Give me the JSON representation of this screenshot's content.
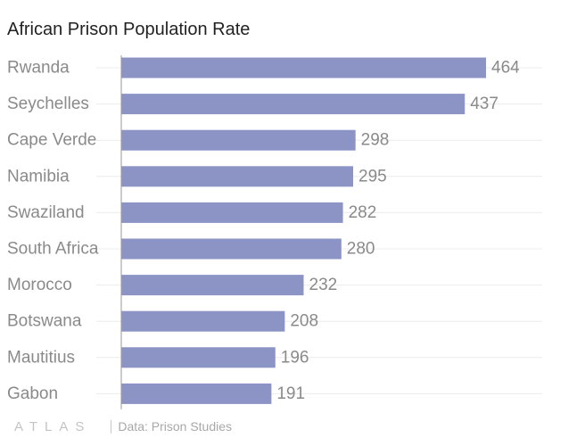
{
  "chart_data": {
    "type": "bar",
    "orientation": "horizontal",
    "title": "African Prison Population Rate",
    "categories": [
      "Rwanda",
      "Seychelles",
      "Cape Verde",
      "Namibia",
      "Swaziland",
      "South Africa",
      "Morocco",
      "Botswana",
      "Mautitius",
      "Gabon"
    ],
    "values": [
      464,
      437,
      298,
      295,
      282,
      280,
      232,
      208,
      196,
      191
    ],
    "xlim": [
      0,
      464
    ],
    "bar_color": "#8c94c6",
    "grid": true,
    "value_labels": true
  },
  "footer": {
    "logo": "ATLAS",
    "source": "Data: Prison Studies"
  }
}
